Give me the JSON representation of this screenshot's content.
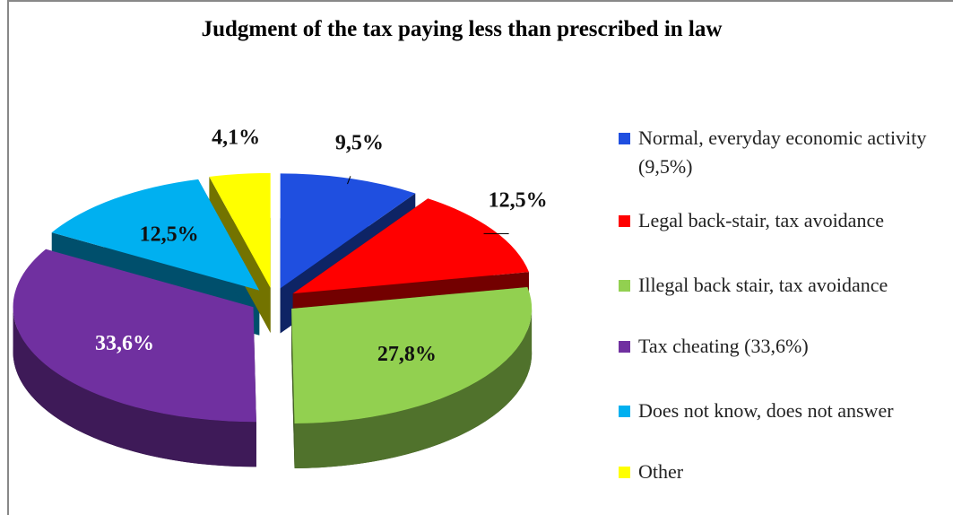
{
  "chart_data": {
    "type": "pie",
    "title": "Judgment of the tax paying less than prescribed in law",
    "categories": [
      "Normal, everyday economic activity (9,5%)",
      "Legal back-stair, tax avoidance",
      "Illegal back stair, tax avoidance",
      "Tax cheating (33,6%)",
      "Does not know, does not answer",
      "Other"
    ],
    "values": [
      9.5,
      12.5,
      27.8,
      33.6,
      12.5,
      4.1
    ],
    "value_labels": [
      "9,5%",
      "12,5%",
      "27,8%",
      "33,6%",
      "12,5%",
      "4,1%"
    ],
    "colors": [
      "#1f4fe0",
      "#ff0000",
      "#92d050",
      "#7030a0",
      "#00b0f0",
      "#ffff00"
    ],
    "legend": "right"
  }
}
